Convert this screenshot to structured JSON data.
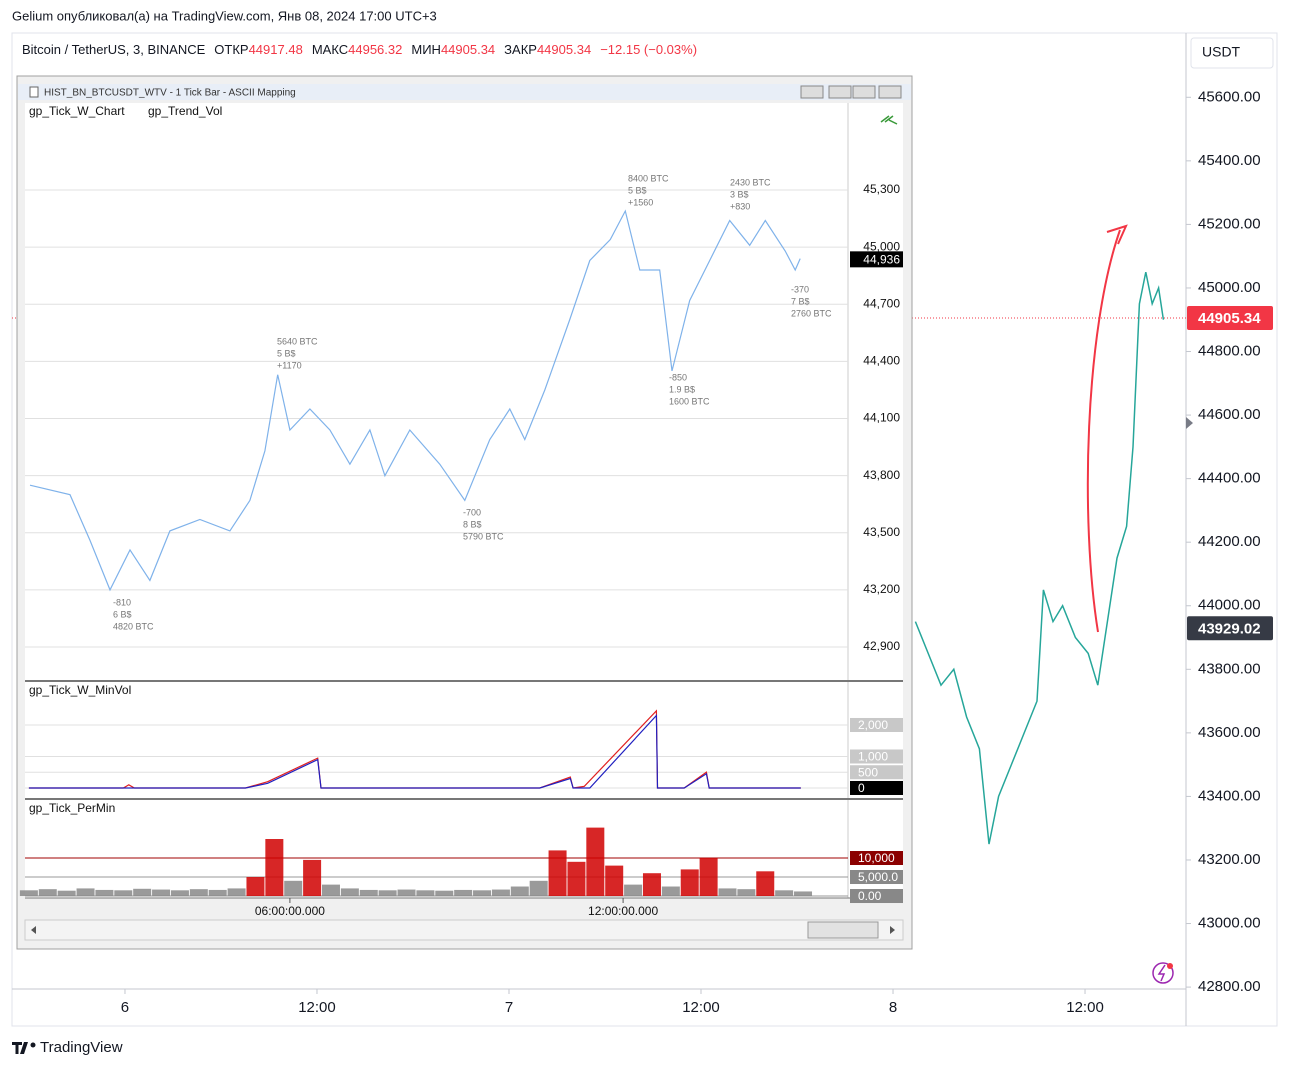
{
  "header": {
    "publisher": "Gelium опубликовал(а) на TradingView.com, Янв 08, 2024 17:00 UTC+3"
  },
  "symbol_bar": {
    "name": "Bitcoin / TetherUS, 3, BINANCE",
    "fields": [
      {
        "label": "ОТКР",
        "value": 44917.48
      },
      {
        "label": "МАКС",
        "value": 44956.32
      },
      {
        "label": "МИН",
        "value": 44905.34
      },
      {
        "label": "ЗАКР",
        "value": 44905.34
      }
    ],
    "change": "−12.15 (−0.03%)"
  },
  "footer": {
    "brand": "TradingView"
  },
  "chart_data": [
    {
      "type": "line",
      "currency": "USDT",
      "x": [
        49.4,
        50.2,
        51.0,
        51.8,
        52.6,
        53.4,
        54.0,
        54.6,
        55.4,
        56.2,
        57.0,
        57.4,
        58.0,
        58.6,
        59.4,
        60.2,
        60.8,
        61.4,
        62.0,
        62.6,
        63.0,
        63.4,
        63.8,
        64.2,
        64.6,
        64.9
      ],
      "series": [
        {
          "color": "#26a69a",
          "values": [
            43950,
            43850,
            43750,
            43800,
            43650,
            43550,
            43250,
            43400,
            43500,
            43600,
            43700,
            44050,
            43950,
            44000,
            43900,
            43850,
            43750,
            43950,
            44150,
            44250,
            44500,
            44950,
            45050,
            44950,
            45000,
            44900
          ]
        }
      ],
      "xlim": [
        -7.06,
        66.31
      ],
      "xticks": [
        {
          "value": 0,
          "label": "6"
        },
        {
          "value": 12,
          "label": "12:00"
        },
        {
          "value": 24,
          "label": "7"
        },
        {
          "value": 36,
          "label": "12:00"
        },
        {
          "value": 48,
          "label": "8"
        },
        {
          "value": 60,
          "label": "12:00"
        }
      ],
      "ylim": [
        42794,
        45796
      ],
      "yticks": [
        {
          "value": 45600,
          "label": "45600.00"
        },
        {
          "value": 45400,
          "label": "45400.00"
        },
        {
          "value": 45200,
          "label": "45200.00"
        },
        {
          "value": 45000,
          "label": "45000.00"
        },
        {
          "value": 44800,
          "label": "44800.00"
        },
        {
          "value": 44600,
          "label": "44600.00"
        },
        {
          "value": 44400,
          "label": "44400.00"
        },
        {
          "value": 44200,
          "label": "44200.00"
        },
        {
          "value": 44000,
          "label": "44000.00"
        },
        {
          "value": 43800,
          "label": "43800.00"
        },
        {
          "value": 43600,
          "label": "43600.00"
        },
        {
          "value": 43400,
          "label": "43400.00"
        },
        {
          "value": 43200,
          "label": "43200.00"
        },
        {
          "value": 43000,
          "label": "43000.00"
        },
        {
          "value": 42800,
          "label": "42800.00"
        }
      ],
      "price_labels": [
        {
          "value": 44905.34,
          "label": "44905.34",
          "color": "#f23645"
        },
        {
          "value": 43929.02,
          "label": "43929.02",
          "color": "#363a45"
        }
      ]
    },
    {
      "type": "line",
      "title": "HIST_BN_BTCUSDT_WTV - 1 Tick Bar - ASCII Mapping",
      "legend": [
        "gp_Tick_W_Chart",
        "gp_Trend_Vol"
      ],
      "x": [
        1.32,
        2.04,
        2.4,
        2.76,
        3.12,
        3.48,
        3.84,
        4.38,
        4.92,
        5.28,
        5.55,
        5.78,
        6.0,
        6.36,
        6.72,
        7.08,
        7.44,
        7.71,
        8.16,
        8.7,
        9.15,
        9.6,
        9.96,
        10.23,
        10.59,
        11.04,
        11.4,
        11.77,
        12.04,
        12.3,
        12.66,
        12.88,
        13.2,
        13.56,
        13.92,
        14.28,
        14.56,
        14.92,
        15.1,
        15.19
      ],
      "series": [
        {
          "color": "#7fb2ea",
          "values": [
            43750,
            43700,
            43460,
            43200,
            43410,
            43250,
            43510,
            43570,
            43510,
            43670,
            43930,
            44330,
            44040,
            44150,
            44040,
            43860,
            44040,
            43800,
            44040,
            43860,
            43670,
            43990,
            44150,
            43990,
            44250,
            44620,
            44930,
            45040,
            45190,
            44880,
            44880,
            44350,
            44720,
            44930,
            45140,
            45010,
            45140,
            44980,
            44880,
            44940
          ]
        }
      ],
      "xlim": [
        1.23,
        16.05
      ],
      "xticks": [
        {
          "value": 6,
          "label": "06:00:00.000"
        },
        {
          "value": 12,
          "label": "12:00:00.000"
        }
      ],
      "ylim": [
        42727,
        45757
      ],
      "yticks": [
        {
          "value": 45300,
          "label": "45,300"
        },
        {
          "value": 45000,
          "label": "45,000"
        },
        {
          "value": 44700,
          "label": "44,700"
        },
        {
          "value": 44400,
          "label": "44,400"
        },
        {
          "value": 44100,
          "label": "44,100"
        },
        {
          "value": 43800,
          "label": "43,800"
        },
        {
          "value": 43500,
          "label": "43,500"
        },
        {
          "value": 43200,
          "label": "43,200"
        },
        {
          "value": 42900,
          "label": "42,900"
        }
      ],
      "last_price": {
        "value": 44936,
        "label": "44,936"
      },
      "annotations": [
        [
          "-810",
          "6 B$",
          "4820 BTC"
        ],
        [
          "5640 BTC",
          "5 B$",
          "+1170"
        ],
        [
          "-700",
          "8 B$",
          "5790 BTC"
        ],
        [
          "8400 BTC",
          "5 B$",
          "+1560"
        ],
        [
          "-850",
          "1.9 B$",
          "1600 BTC"
        ],
        [
          "2430 BTC",
          "3 B$",
          "+830"
        ],
        [
          "-370",
          "7 B$",
          "2760 BTC"
        ]
      ]
    },
    {
      "type": "line",
      "title": "gp_Tick_W_MinVol",
      "series": [
        {
          "color": "#e02020",
          "x": [
            1.3,
            3.0,
            3.1,
            3.2,
            5.2,
            5.6,
            6.5,
            6.56,
            10.5,
            11.05,
            11.1,
            11.3,
            12.6,
            12.62,
            13.1,
            13.5,
            13.55,
            15.2
          ],
          "values": [
            0,
            0,
            100,
            0,
            0,
            200,
            950,
            0,
            0,
            350,
            0,
            50,
            2450,
            0,
            0,
            500,
            0,
            0
          ]
        },
        {
          "color": "#2020c0",
          "x": [
            1.3,
            5.2,
            5.6,
            6.5,
            6.56,
            10.5,
            11.05,
            11.1,
            11.4,
            12.6,
            12.62,
            13.1,
            13.5,
            13.55,
            15.2
          ],
          "values": [
            0,
            0,
            150,
            900,
            0,
            0,
            300,
            0,
            0,
            2300,
            0,
            0,
            450,
            0,
            0
          ]
        }
      ],
      "xlim": [
        1.23,
        16.05
      ],
      "ylim": [
        -286,
        3333
      ],
      "yticks": [
        {
          "value": 2000,
          "label": "2,000"
        },
        {
          "value": 1000,
          "label": "1,000"
        },
        500,
        0
      ],
      "tick_box_colors": [
        "#c8c8c8",
        "#c8c8c8",
        "#c8c8c8",
        "#000000"
      ]
    },
    {
      "type": "bar",
      "title": "gp_Tick_PerMin",
      "x": [
        1.3,
        1.64,
        1.98,
        2.32,
        2.66,
        3.0,
        3.34,
        3.68,
        4.02,
        4.36,
        4.7,
        5.04,
        5.38,
        5.72,
        6.06,
        6.4,
        6.74,
        7.08,
        7.42,
        7.76,
        8.1,
        8.44,
        8.78,
        9.12,
        9.46,
        9.8,
        10.14,
        10.48,
        10.82,
        11.16,
        11.5,
        11.84,
        12.18,
        12.52,
        12.86,
        13.2,
        13.54,
        13.88,
        14.22,
        14.56,
        14.9,
        15.24
      ],
      "values": [
        1500,
        1800,
        1400,
        2000,
        1600,
        1500,
        1900,
        1700,
        1500,
        1800,
        1600,
        2000,
        5000,
        15000,
        4000,
        9500,
        3000,
        2000,
        1600,
        1500,
        1700,
        1500,
        1400,
        1600,
        1500,
        1700,
        2500,
        4000,
        12000,
        9000,
        18000,
        8000,
        3000,
        6000,
        2500,
        7000,
        10000,
        2000,
        1800,
        6500,
        1500,
        1200
      ],
      "colors": [
        "#888888",
        "#888888",
        "#888888",
        "#888888",
        "#888888",
        "#888888",
        "#888888",
        "#888888",
        "#888888",
        "#888888",
        "#888888",
        "#888888",
        "#d00000",
        "#d00000",
        "#888888",
        "#d00000",
        "#888888",
        "#888888",
        "#888888",
        "#888888",
        "#888888",
        "#888888",
        "#888888",
        "#888888",
        "#888888",
        "#888888",
        "#888888",
        "#888888",
        "#d00000",
        "#d00000",
        "#d00000",
        "#d00000",
        "#888888",
        "#d00000",
        "#888888",
        "#d00000",
        "#d00000",
        "#888888",
        "#888888",
        "#d00000",
        "#888888",
        "#888888"
      ],
      "xlim": [
        1.23,
        16.05
      ],
      "ylim": [
        -260,
        25000
      ],
      "yticks": [
        {
          "value": 10000,
          "label": "10,000"
        },
        {
          "value": 5000,
          "label": "5,000.0"
        },
        {
          "value": 0,
          "label": "0.00"
        }
      ],
      "grid_colors": [
        "#a00000",
        "#999999",
        "#999999"
      ],
      "tick_box_colors": [
        "#8b0000",
        "#888888",
        "#888888"
      ]
    }
  ]
}
